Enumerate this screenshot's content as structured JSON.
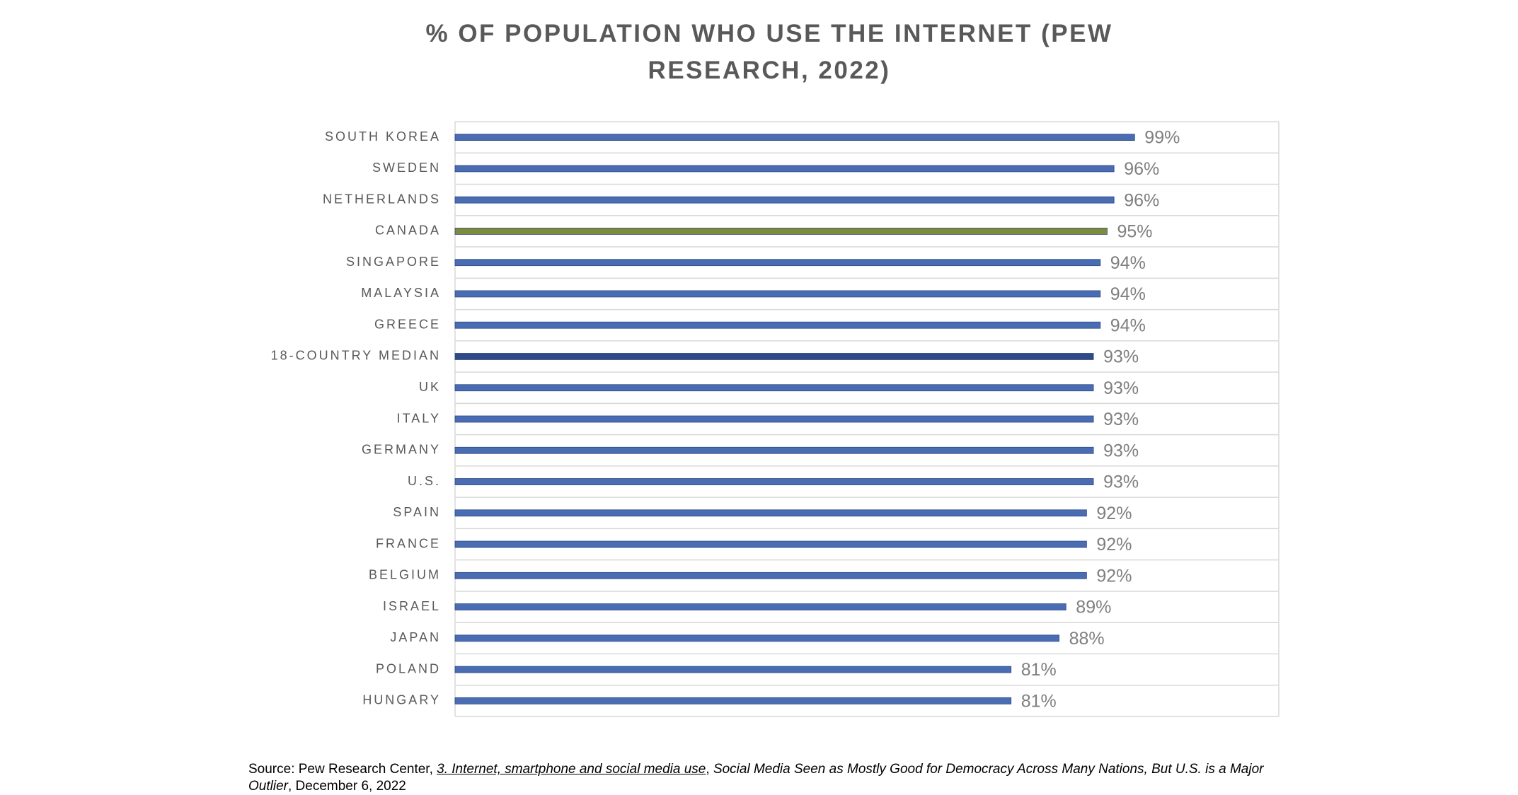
{
  "chart_data": {
    "type": "bar",
    "orientation": "horizontal",
    "title": "% OF POPULATION WHO USE THE INTERNET (PEW RESEARCH, 2022)",
    "categories": [
      "SOUTH KOREA",
      "SWEDEN",
      "NETHERLANDS",
      "CANADA",
      "SINGAPORE",
      "MALAYSIA",
      "GREECE",
      "18-COUNTRY MEDIAN",
      "UK",
      "ITALY",
      "GERMANY",
      "U.S.",
      "SPAIN",
      "FRANCE",
      "BELGIUM",
      "ISRAEL",
      "JAPAN",
      "POLAND",
      "HUNGARY"
    ],
    "values": [
      99,
      96,
      96,
      95,
      94,
      94,
      94,
      93,
      93,
      93,
      93,
      93,
      92,
      92,
      92,
      89,
      88,
      81,
      81
    ],
    "value_labels": [
      "99%",
      "96%",
      "96%",
      "95%",
      "94%",
      "94%",
      "94%",
      "93%",
      "93%",
      "93%",
      "93%",
      "93%",
      "92%",
      "92%",
      "92%",
      "89%",
      "88%",
      "81%",
      "81%"
    ],
    "colors": [
      "#4a6cb3",
      "#4a6cb3",
      "#4a6cb3",
      "#7e8b3c",
      "#4a6cb3",
      "#4a6cb3",
      "#4a6cb3",
      "#2f4a86",
      "#4a6cb3",
      "#4a6cb3",
      "#4a6cb3",
      "#4a6cb3",
      "#4a6cb3",
      "#4a6cb3",
      "#4a6cb3",
      "#4a6cb3",
      "#4a6cb3",
      "#4a6cb3",
      "#4a6cb3"
    ],
    "xlim": [
      0,
      120
    ],
    "grid": true,
    "source": [
      "Source: Pew Research Center, ",
      "3. Internet, smartphone and social media use",
      ", ",
      "Social Media Seen as Mostly Good for Democracy Across Many Nations, But U.S. is a Major Outlier",
      ", December 6, 2022"
    ]
  }
}
